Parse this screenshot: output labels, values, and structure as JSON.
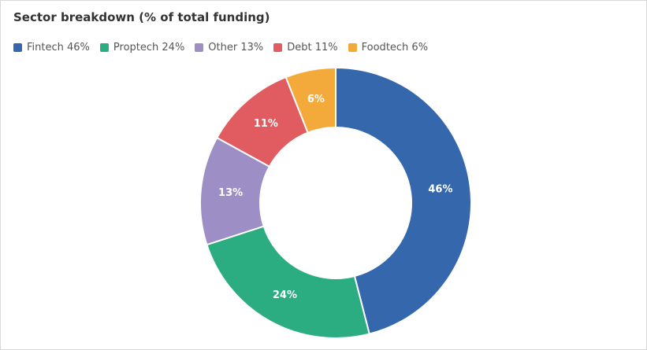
{
  "chart_data": {
    "type": "pie",
    "variant": "donut",
    "title": "Sector breakdown (% of total funding)",
    "legend_position": "top-left",
    "slices": [
      {
        "label": "Fintech 46%",
        "name": "Fintech",
        "value": 46,
        "data_label": "46%",
        "color": "#3467ab"
      },
      {
        "label": "Proptech 24%",
        "name": "Proptech",
        "value": 24,
        "data_label": "24%",
        "color": "#2bac81"
      },
      {
        "label": "Other 13%",
        "name": "Other",
        "value": 13,
        "data_label": "13%",
        "color": "#9d8fc6"
      },
      {
        "label": "Debt 11%",
        "name": "Debt",
        "value": 11,
        "data_label": "11%",
        "color": "#e05c61"
      },
      {
        "label": "Foodtech 6%",
        "name": "Foodtech",
        "value": 6,
        "data_label": "6%",
        "color": "#f4a93b"
      }
    ]
  }
}
